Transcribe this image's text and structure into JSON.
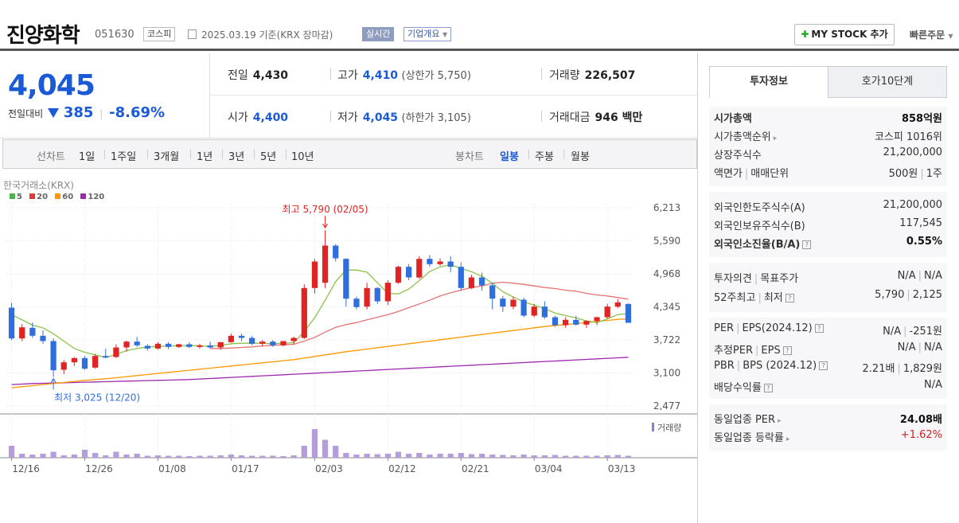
{
  "header": {
    "company": "진양화학",
    "code": "051630",
    "market_tag": "코스피",
    "date_text": "2025.03.19 기준(KRX 장마감)",
    "live_tag": "실시간",
    "company_info_tag": "기업개요",
    "mystock_label": "MY STOCK 추가",
    "quick_order_label": "빠른주문"
  },
  "price": {
    "current": "4,045",
    "change_label": "전일대비",
    "change_value": "385",
    "change_pct": "-8.69%"
  },
  "quote": {
    "prev_close_label": "전일",
    "prev_close": "4,430",
    "high_label": "고가",
    "high": "4,410",
    "upper_limit_text": "(상한가 5,750)",
    "volume_label": "거래량",
    "volume": "226,507",
    "open_label": "시가",
    "open": "4,400",
    "low_label": "저가",
    "low": "4,045",
    "lower_limit_text": "(하한가 3,105)",
    "amount_label": "거래대금",
    "amount": "946 백만"
  },
  "period_tabs": {
    "line_chart_label": "선차트",
    "items": [
      "1일",
      "1주일",
      "3개월",
      "1년",
      "3년",
      "5년",
      "10년"
    ],
    "candle_label": "봉차트",
    "candle_items": [
      "일봉",
      "주봉",
      "월봉"
    ]
  },
  "chart_data": {
    "type": "candlestick",
    "source_label": "한국거래소(KRX)",
    "legend": [
      {
        "name": "5",
        "color": "#4caf50"
      },
      {
        "name": "20",
        "color": "#e53935"
      },
      {
        "name": "60",
        "color": "#ff9800"
      },
      {
        "name": "120",
        "color": "#9c27b0"
      }
    ],
    "y_ticks": [
      "6,213",
      "5,590",
      "4,968",
      "4,345",
      "3,722",
      "3,100",
      "2,477"
    ],
    "ylim": [
      2477,
      6213
    ],
    "x_tick_labels": [
      "12/16",
      "12/26",
      "01/08",
      "01/17",
      "02/03",
      "02/12",
      "02/21",
      "03/04",
      "03/13"
    ],
    "x_tick_indices": [
      0,
      7,
      14,
      21,
      29,
      36,
      43,
      50,
      57
    ],
    "annotation_high": "최고 5,790 (02/05)",
    "annotation_high_index": 30,
    "annotation_low": "최저 3,025 (12/20)",
    "annotation_low_index": 4,
    "volume_label": "거래량",
    "candles": [
      [
        4330,
        4420,
        3720,
        3750
      ],
      [
        3750,
        4020,
        3700,
        3960
      ],
      [
        3950,
        4050,
        3760,
        3800
      ],
      [
        3800,
        3900,
        3650,
        3700
      ],
      [
        3700,
        3750,
        3025,
        3150
      ],
      [
        3160,
        3340,
        3080,
        3300
      ],
      [
        3300,
        3400,
        3230,
        3380
      ],
      [
        3380,
        3420,
        3160,
        3180
      ],
      [
        3200,
        3460,
        3180,
        3420
      ],
      [
        3420,
        3560,
        3380,
        3390
      ],
      [
        3400,
        3640,
        3380,
        3580
      ],
      [
        3580,
        3710,
        3500,
        3690
      ],
      [
        3690,
        3780,
        3590,
        3620
      ],
      [
        3610,
        3640,
        3520,
        3560
      ],
      [
        3560,
        3680,
        3540,
        3650
      ],
      [
        3650,
        3680,
        3550,
        3590
      ],
      [
        3590,
        3650,
        3570,
        3640
      ],
      [
        3640,
        3680,
        3570,
        3590
      ],
      [
        3590,
        3650,
        3560,
        3620
      ],
      [
        3620,
        3690,
        3560,
        3580
      ],
      [
        3580,
        3680,
        3540,
        3680
      ],
      [
        3680,
        3840,
        3670,
        3800
      ],
      [
        3800,
        3840,
        3700,
        3760
      ],
      [
        3760,
        3800,
        3620,
        3650
      ],
      [
        3650,
        3720,
        3600,
        3690
      ],
      [
        3690,
        3720,
        3590,
        3620
      ],
      [
        3620,
        3700,
        3600,
        3700
      ],
      [
        3700,
        3780,
        3640,
        3760
      ],
      [
        3760,
        4770,
        3740,
        4700
      ],
      [
        4700,
        5250,
        4600,
        5200
      ],
      [
        4800,
        5790,
        4700,
        5500
      ],
      [
        5500,
        5530,
        5200,
        5260
      ],
      [
        5250,
        5260,
        4350,
        4500
      ],
      [
        4500,
        4540,
        4300,
        4340
      ],
      [
        4350,
        4800,
        4300,
        4700
      ],
      [
        4700,
        4720,
        4400,
        4450
      ],
      [
        4450,
        4850,
        4380,
        4800
      ],
      [
        4800,
        5120,
        4780,
        5100
      ],
      [
        5100,
        5150,
        4850,
        4900
      ],
      [
        4900,
        5300,
        4870,
        5250
      ],
      [
        5250,
        5320,
        5100,
        5150
      ],
      [
        5150,
        5260,
        5120,
        5200
      ],
      [
        5200,
        5300,
        5000,
        5100
      ],
      [
        5100,
        5180,
        4650,
        4700
      ],
      [
        4700,
        4950,
        4680,
        4900
      ],
      [
        4900,
        4990,
        4650,
        4750
      ],
      [
        4750,
        4800,
        4300,
        4500
      ],
      [
        4500,
        4550,
        4250,
        4350
      ],
      [
        4350,
        4540,
        4300,
        4480
      ],
      [
        4480,
        4520,
        4150,
        4180
      ],
      [
        4180,
        4400,
        4150,
        4350
      ],
      [
        4350,
        4450,
        4120,
        4150
      ],
      [
        4150,
        4180,
        3970,
        4000
      ],
      [
        4000,
        4150,
        3950,
        4100
      ],
      [
        4100,
        4180,
        3990,
        4010
      ],
      [
        4010,
        4090,
        3950,
        4080
      ],
      [
        4080,
        4160,
        4000,
        4150
      ],
      [
        4150,
        4400,
        4120,
        4350
      ],
      [
        4350,
        4490,
        4320,
        4430
      ],
      [
        4400,
        4410,
        4045,
        4045
      ]
    ],
    "ma5": [
      4200,
      4100,
      4000,
      3950,
      3840,
      3700,
      3560,
      3490,
      3440,
      3390,
      3450,
      3520,
      3560,
      3590,
      3600,
      3610,
      3610,
      3620,
      3610,
      3600,
      3620,
      3650,
      3660,
      3660,
      3660,
      3650,
      3660,
      3670,
      3880,
      4140,
      4470,
      4820,
      5040,
      5040,
      5000,
      4800,
      4600,
      4590,
      4680,
      4840,
      5010,
      5100,
      5140,
      5070,
      5010,
      4920,
      4790,
      4630,
      4530,
      4440,
      4380,
      4310,
      4230,
      4180,
      4140,
      4080,
      4050,
      4120,
      4200,
      4220
    ],
    "ma20": [
      null,
      null,
      null,
      null,
      null,
      null,
      null,
      null,
      null,
      null,
      null,
      null,
      null,
      null,
      null,
      null,
      null,
      null,
      null,
      3560,
      3560,
      3570,
      3580,
      3590,
      3610,
      3620,
      3630,
      3640,
      3700,
      3770,
      3870,
      3960,
      4010,
      4050,
      4100,
      4150,
      4200,
      4260,
      4330,
      4400,
      4470,
      4550,
      4610,
      4660,
      4710,
      4740,
      4790,
      4810,
      4790,
      4770,
      4740,
      4710,
      4690,
      4660,
      4640,
      4600,
      4570,
      4550,
      4520,
      4490
    ],
    "ma60": [
      2820,
      2840,
      2860,
      2880,
      2900,
      2920,
      2940,
      2960,
      2975,
      2990,
      3010,
      3030,
      3050,
      3070,
      3090,
      3110,
      3130,
      3150,
      3170,
      3190,
      3210,
      3230,
      3250,
      3270,
      3290,
      3310,
      3330,
      3350,
      3380,
      3410,
      3440,
      3470,
      3500,
      3525,
      3550,
      3575,
      3600,
      3625,
      3650,
      3675,
      3700,
      3725,
      3750,
      3775,
      3800,
      3825,
      3850,
      3875,
      3900,
      3925,
      3950,
      3975,
      3995,
      4010,
      4030,
      4050,
      4070,
      4090,
      4110,
      4120
    ],
    "ma120": [
      2880,
      2890,
      2900,
      2905,
      2910,
      2915,
      2920,
      2925,
      2930,
      2935,
      2940,
      2945,
      2950,
      2955,
      2960,
      2965,
      2970,
      2975,
      2985,
      2995,
      3005,
      3015,
      3025,
      3035,
      3045,
      3055,
      3065,
      3075,
      3085,
      3095,
      3105,
      3115,
      3125,
      3135,
      3145,
      3155,
      3165,
      3175,
      3185,
      3195,
      3205,
      3215,
      3225,
      3235,
      3245,
      3255,
      3265,
      3275,
      3285,
      3295,
      3305,
      3315,
      3325,
      3335,
      3345,
      3355,
      3365,
      3375,
      3385,
      3395
    ],
    "volumes": [
      0.3,
      0.1,
      0.08,
      0.1,
      0.15,
      0.06,
      0.08,
      0.2,
      0.12,
      0.06,
      0.15,
      0.08,
      0.1,
      0.05,
      0.06,
      0.05,
      0.05,
      0.04,
      0.05,
      0.05,
      0.06,
      0.08,
      0.06,
      0.05,
      0.05,
      0.05,
      0.04,
      0.06,
      0.3,
      0.72,
      0.45,
      0.3,
      0.12,
      0.08,
      0.1,
      0.09,
      0.1,
      0.15,
      0.1,
      0.12,
      0.08,
      0.1,
      0.1,
      0.12,
      0.09,
      0.1,
      0.08,
      0.07,
      0.06,
      0.08,
      0.06,
      0.06,
      0.07,
      0.05,
      0.05,
      0.05,
      0.05,
      0.06,
      0.07,
      0.05
    ]
  },
  "info_panel": {
    "tab_active": "투자정보",
    "tab_other": "호가10단계",
    "market_cap_label": "시가총액",
    "market_cap": "858억원",
    "market_cap_rank_label": "시가총액순위",
    "market_cap_rank": "코스피 1016위",
    "listed_shares_label": "상장주식수",
    "listed_shares": "21,200,000",
    "face_value_label": "액면가",
    "trade_unit_label": "매매단위",
    "face_value": "500원",
    "trade_unit": "1주",
    "foreign_limit_label": "외국인한도주식수(A)",
    "foreign_limit": "21,200,000",
    "foreign_hold_label": "외국인보유주식수(B)",
    "foreign_hold": "117,545",
    "foreign_ratio_label": "외국인소진율(B/A)",
    "foreign_ratio": "0.55%",
    "opinion_label": "투자의견",
    "target_label": "목표주가",
    "opinion": "N/A",
    "target": "N/A",
    "week52_label": "52주최고",
    "week52_low_label": "최저",
    "week52_high": "5,790",
    "week52_low": "2,125",
    "per_label": "PER",
    "eps_label": "EPS(2024.12)",
    "per": "N/A",
    "eps": "-251원",
    "est_per_label": "추정PER",
    "est_eps_label": "EPS",
    "est_per": "N/A",
    "est_eps": "N/A",
    "pbr_label": "PBR",
    "bps_label": "BPS (2024.12)",
    "pbr": "2.21배",
    "bps": "1,829원",
    "dividend_label": "배당수익률",
    "dividend": "N/A",
    "industry_per_label": "동일업종 PER",
    "industry_per": "24.08배",
    "industry_rate_label": "동일업종 등락률",
    "industry_rate": "+1.62%"
  }
}
